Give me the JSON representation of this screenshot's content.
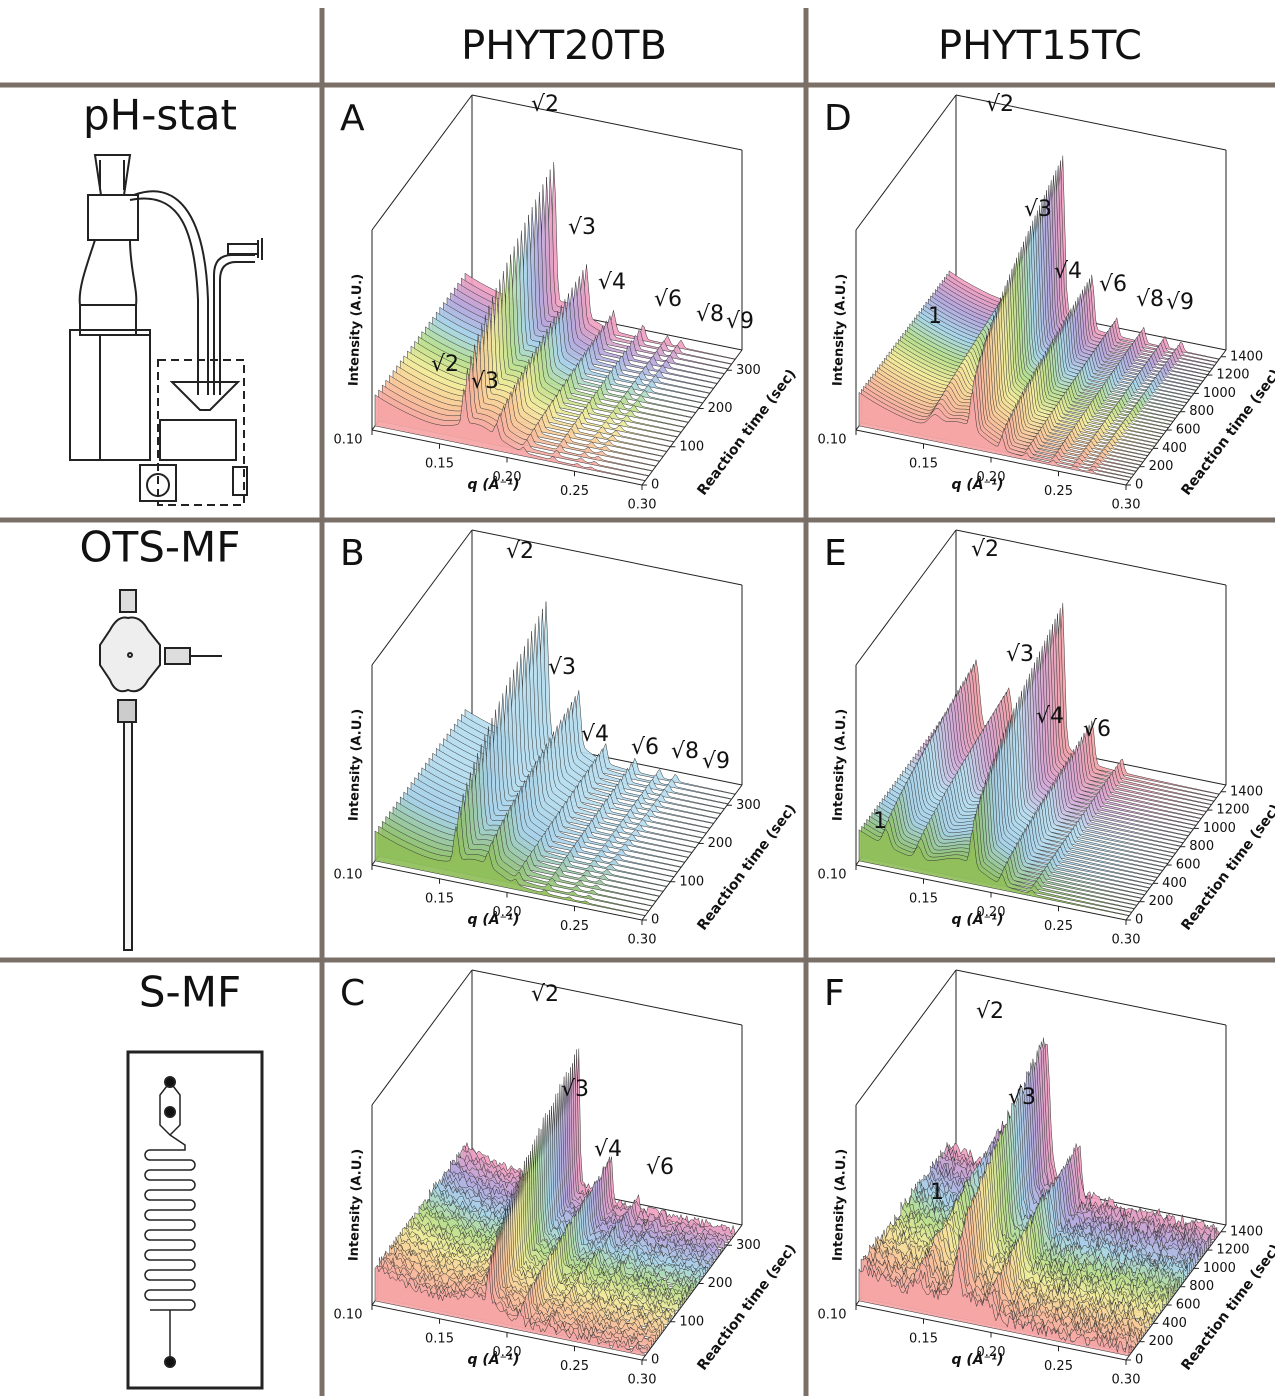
{
  "header": {
    "columns": [
      "PHYT20TB",
      "PHYT15TC"
    ]
  },
  "rows": [
    {
      "method": "pH-stat",
      "panels": [
        {
          "letter": "A",
          "peak_labels": [
            "√2",
            "√3",
            "√4",
            "√6",
            "√8",
            "√9",
            "√2",
            "√3"
          ]
        },
        {
          "letter": "D",
          "peak_labels": [
            "√2",
            "√3",
            "√4",
            "√6",
            "√8",
            "√9",
            "1"
          ]
        }
      ]
    },
    {
      "method": "OTS-MF",
      "panels": [
        {
          "letter": "B",
          "peak_labels": [
            "√2",
            "√3",
            "√4",
            "√6",
            "√8",
            "√9"
          ]
        },
        {
          "letter": "E",
          "peak_labels": [
            "√2",
            "√3",
            "√4",
            "√6",
            "1"
          ]
        }
      ]
    },
    {
      "method": "S-MF",
      "panels": [
        {
          "letter": "C",
          "peak_labels": [
            "√2",
            "√3",
            "√4",
            "√6"
          ]
        },
        {
          "letter": "F",
          "peak_labels": [
            "√2",
            "√3",
            "1"
          ]
        }
      ]
    }
  ],
  "axes": {
    "q_label": "q (Å⁻¹)",
    "intensity_label": "Intensity (A.U.)",
    "time_label": "Reaction time (sec)",
    "q_ticks": [
      "0.10",
      "0.15",
      "0.20",
      "0.25",
      "0.30"
    ],
    "time_ticks": [
      [
        "0",
        "100",
        "200",
        "300"
      ],
      [
        "0",
        "200",
        "400",
        "600",
        "800",
        "1000",
        "1200",
        "1400"
      ]
    ]
  }
}
